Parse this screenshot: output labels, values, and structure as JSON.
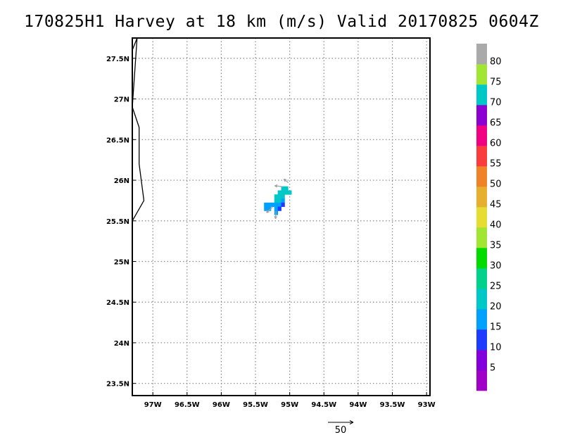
{
  "title": "170825H1 Harvey at 18 km (m/s) Valid 20170825 0604Z",
  "map": {
    "lon_range": [
      -97.3,
      -92.95
    ],
    "lat_range": [
      23.35,
      27.75
    ],
    "lon_ticks": [
      {
        "value": -97.0,
        "label": "97W"
      },
      {
        "value": -96.5,
        "label": "96.5W"
      },
      {
        "value": -96.0,
        "label": "96W"
      },
      {
        "value": -95.5,
        "label": "95.5W"
      },
      {
        "value": -95.0,
        "label": "95W"
      },
      {
        "value": -94.5,
        "label": "94.5W"
      },
      {
        "value": -94.0,
        "label": "94W"
      },
      {
        "value": -93.5,
        "label": "93.5W"
      },
      {
        "value": -93.0,
        "label": "93W"
      }
    ],
    "lat_ticks": [
      {
        "value": 23.5,
        "label": "23.5N"
      },
      {
        "value": 24.0,
        "label": "24N"
      },
      {
        "value": 24.5,
        "label": "24.5N"
      },
      {
        "value": 25.0,
        "label": "25N"
      },
      {
        "value": 25.5,
        "label": "25.5N"
      },
      {
        "value": 26.0,
        "label": "26N"
      },
      {
        "value": 26.5,
        "label": "26.5N"
      },
      {
        "value": 27.0,
        "label": "27N"
      },
      {
        "value": 27.5,
        "label": "27.5N"
      }
    ],
    "grid": "dotted",
    "coastline": [
      [
        -97.3,
        27.6
      ],
      [
        -97.23,
        27.75
      ],
      [
        -97.3,
        26.9
      ],
      [
        -97.2,
        26.65
      ],
      [
        -97.2,
        26.2
      ],
      [
        -97.13,
        25.75
      ],
      [
        -97.3,
        25.5
      ]
    ],
    "cell_size_deg": 0.05,
    "wind_cells": [
      {
        "lon": -95.1,
        "lat": 25.9,
        "speed": 20
      },
      {
        "lon": -95.05,
        "lat": 25.9,
        "speed": 20
      },
      {
        "lon": -95.15,
        "lat": 25.85,
        "speed": 20
      },
      {
        "lon": -95.1,
        "lat": 25.85,
        "speed": 20
      },
      {
        "lon": -95.05,
        "lat": 25.85,
        "speed": 20
      },
      {
        "lon": -95.0,
        "lat": 25.85,
        "speed": 20
      },
      {
        "lon": -95.2,
        "lat": 25.8,
        "speed": 20
      },
      {
        "lon": -95.15,
        "lat": 25.8,
        "speed": 20
      },
      {
        "lon": -95.1,
        "lat": 25.8,
        "speed": 20
      },
      {
        "lon": -95.2,
        "lat": 25.75,
        "speed": 20
      },
      {
        "lon": -95.15,
        "lat": 25.75,
        "speed": 20
      },
      {
        "lon": -95.1,
        "lat": 25.75,
        "speed": 15
      },
      {
        "lon": -95.35,
        "lat": 25.7,
        "speed": 15
      },
      {
        "lon": -95.3,
        "lat": 25.7,
        "speed": 15
      },
      {
        "lon": -95.25,
        "lat": 25.7,
        "speed": 15
      },
      {
        "lon": -95.2,
        "lat": 25.7,
        "speed": 15
      },
      {
        "lon": -95.15,
        "lat": 25.7,
        "speed": 15
      },
      {
        "lon": -95.1,
        "lat": 25.7,
        "speed": 10
      },
      {
        "lon": -95.35,
        "lat": 25.65,
        "speed": 15
      },
      {
        "lon": -95.3,
        "lat": 25.65,
        "speed": 15
      },
      {
        "lon": -95.2,
        "lat": 25.65,
        "speed": 15
      },
      {
        "lon": -95.15,
        "lat": 25.65,
        "speed": 10
      },
      {
        "lon": -95.2,
        "lat": 25.6,
        "speed": 15
      }
    ],
    "wind_vectors": [
      {
        "lon": -95.1,
        "lat": 25.92,
        "u": -16,
        "v": 2
      },
      {
        "lon": -95.02,
        "lat": 25.97,
        "u": -9,
        "v": 7
      },
      {
        "lon": -95.25,
        "lat": 25.67,
        "u": -12,
        "v": -11
      },
      {
        "lon": -95.2,
        "lat": 25.62,
        "u": -1,
        "v": -15
      }
    ],
    "reference_vector": {
      "value": 50,
      "label": "50"
    }
  },
  "colorbar": {
    "colors": [
      "#a000c8",
      "#8200dc",
      "#1e3cff",
      "#00a0ff",
      "#00c8c8",
      "#00d28c",
      "#00dc00",
      "#a0e632",
      "#e6dc32",
      "#e6af2d",
      "#f08228",
      "#fa3c3c",
      "#f00082",
      "#8c00d2",
      "#00c8c8",
      "#a0e632",
      "#aaaaaa"
    ],
    "labels": [
      {
        "index": 1,
        "text": "5"
      },
      {
        "index": 2,
        "text": "10"
      },
      {
        "index": 3,
        "text": "15"
      },
      {
        "index": 4,
        "text": "20"
      },
      {
        "index": 5,
        "text": "25"
      },
      {
        "index": 6,
        "text": "30"
      },
      {
        "index": 7,
        "text": "35"
      },
      {
        "index": 8,
        "text": "40"
      },
      {
        "index": 9,
        "text": "45"
      },
      {
        "index": 10,
        "text": "50"
      },
      {
        "index": 11,
        "text": "55"
      },
      {
        "index": 12,
        "text": "60"
      },
      {
        "index": 13,
        "text": "65"
      },
      {
        "index": 14,
        "text": "70"
      },
      {
        "index": 15,
        "text": "75"
      },
      {
        "index": 16,
        "text": "80"
      }
    ],
    "speed_bins": [
      5,
      10,
      15,
      20,
      25,
      30,
      35,
      40,
      45,
      50,
      55,
      60,
      65,
      70,
      75,
      80
    ],
    "vector_color": "#a0a0a0",
    "coast_color": "#000000"
  }
}
